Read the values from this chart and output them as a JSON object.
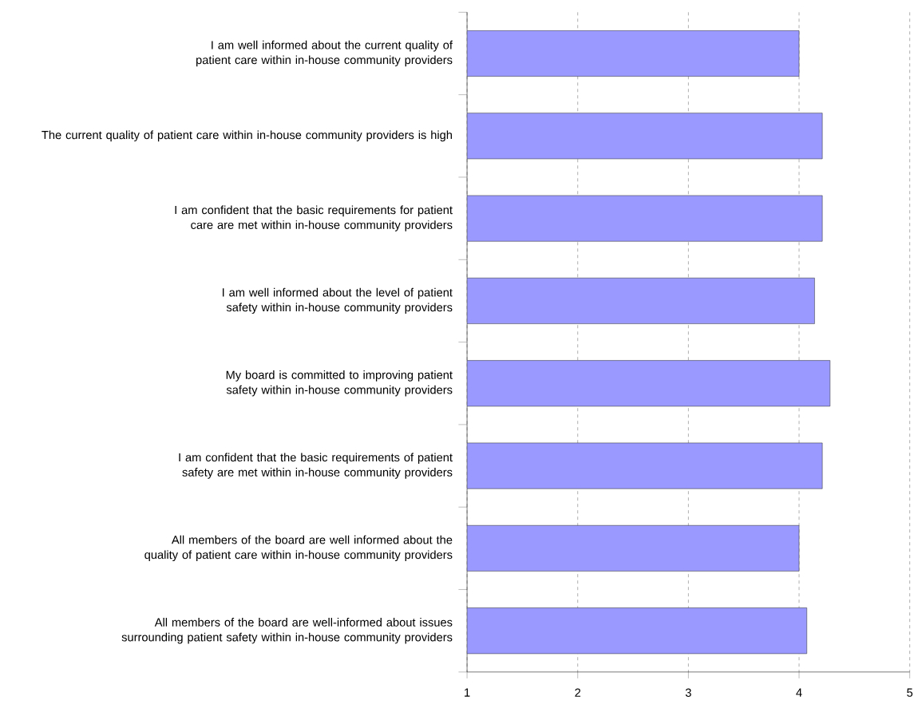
{
  "chart_data": {
    "type": "bar",
    "orientation": "horizontal",
    "categories": [
      "I am well informed about the current quality of patient care within in-house community providers",
      "The current quality of patient care within in-house community providers is high",
      "I am confident that the basic requirements for patient care are met within in-house community providers",
      "I am well informed about the level of patient safety within in-house community providers",
      "My board is committed to improving patient safety within in-house community providers",
      "I am confident that the basic requirements of patient safety are met within in-house community providers",
      "All members of the board are well informed about the quality of patient care within in-house community providers",
      "All members of the board are well-informed about issues surrounding patient safety within in-house community providers"
    ],
    "values": [
      4.0,
      4.21,
      4.21,
      4.14,
      4.28,
      4.21,
      4.0,
      4.07
    ],
    "color": "#9999ff",
    "xlim": [
      1,
      5
    ],
    "xticks": [
      1,
      2,
      3,
      4,
      5
    ],
    "grid": "x",
    "legend": false
  }
}
